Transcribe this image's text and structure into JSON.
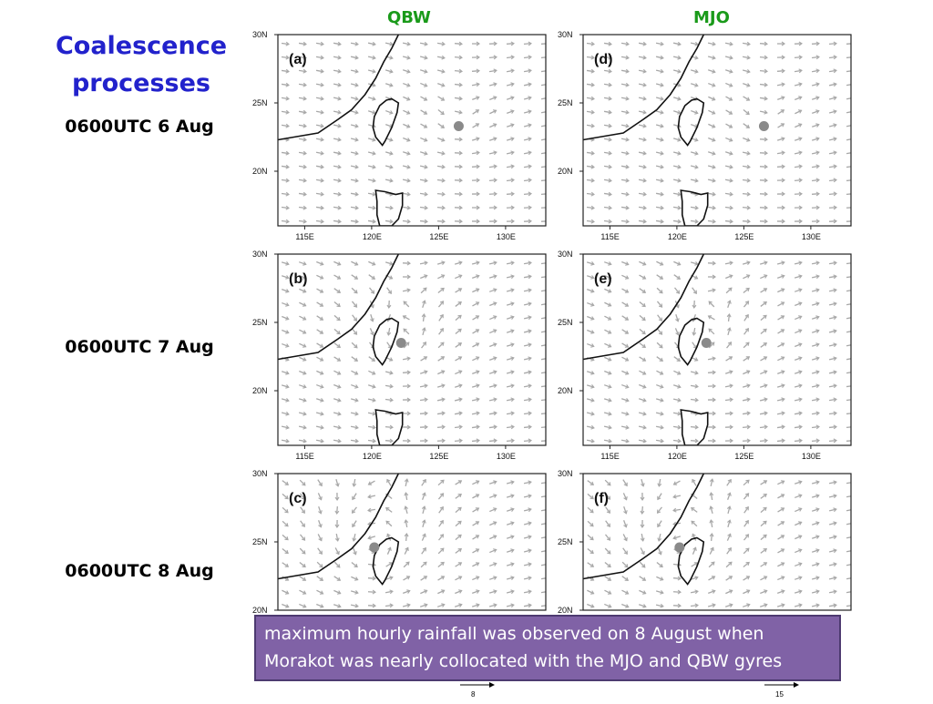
{
  "title": {
    "line1": "Coalescence",
    "line2": "processes"
  },
  "columns": {
    "left": "QBW",
    "right": "MJO"
  },
  "times": [
    "0600UTC 6 Aug",
    "0600UTC 7 Aug",
    "0600UTC 8 Aug"
  ],
  "panels": [
    {
      "label": "(a)",
      "column": "QBW",
      "time": "0600UTC 6 Aug",
      "storm_lon": 126.5,
      "storm_lat": 23.3,
      "gyre": "weak"
    },
    {
      "label": "(d)",
      "column": "MJO",
      "time": "0600UTC 6 Aug",
      "storm_lon": 126.5,
      "storm_lat": 23.3,
      "gyre": "weak"
    },
    {
      "label": "(b)",
      "column": "QBW",
      "time": "0600UTC 7 Aug",
      "storm_lon": 122.2,
      "storm_lat": 23.5,
      "gyre": "moderate"
    },
    {
      "label": "(e)",
      "column": "MJO",
      "time": "0600UTC 7 Aug",
      "storm_lon": 122.2,
      "storm_lat": 23.5,
      "gyre": "moderate"
    },
    {
      "label": "(c)",
      "column": "QBW",
      "time": "0600UTC 8 Aug",
      "storm_lon": 120.2,
      "storm_lat": 24.6,
      "gyre": "strong"
    },
    {
      "label": "(f)",
      "column": "MJO",
      "time": "0600UTC 8 Aug",
      "storm_lon": 120.2,
      "storm_lat": 24.6,
      "gyre": "strong"
    }
  ],
  "axes": {
    "lat_ticks": [
      "30N",
      "25N",
      "20N"
    ],
    "lon_ticks": [
      "115E",
      "120E",
      "125E",
      "130E"
    ],
    "lon_range": [
      113,
      133
    ],
    "lat_range": [
      16,
      30
    ]
  },
  "bottom_row_lat_ticks": [
    "30N",
    "25N",
    "20N"
  ],
  "reference_vectors": {
    "left": "8",
    "right": "15"
  },
  "callout": {
    "line1": "maximum hourly rainfall was observed on 8 August when",
    "line2": "Morakot was nearly collocated with the MJO and QBW gyres"
  },
  "colors": {
    "title": "#2222cc",
    "column_heading": "#1a9a1a",
    "callout_bg": "#8062a6",
    "vectors": "#a8a8a8",
    "storm_dot": "#8a8a8a"
  }
}
